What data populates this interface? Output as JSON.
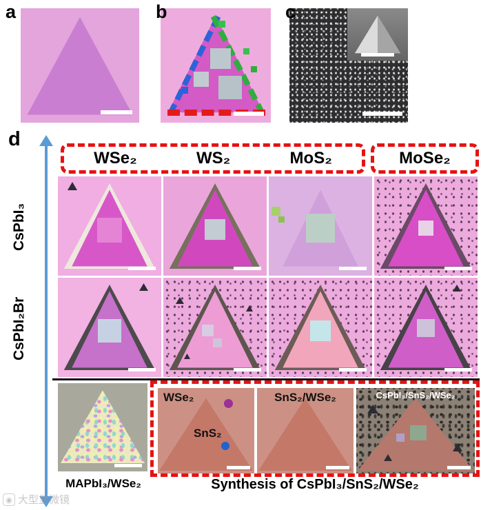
{
  "figure": {
    "panel_labels": {
      "a": "a",
      "b": "b",
      "c": "c",
      "d": "d"
    }
  },
  "grid": {
    "column_headers": [
      "WSe₂",
      "WS₂",
      "MoS₂",
      "MoSe₂"
    ],
    "row_headers": [
      "CsPbI₃",
      "CsPbI₂Br"
    ]
  },
  "bottom_row": {
    "left_caption": "MAPbI₃/WSe₂",
    "synthesis_caption": "Synthesis of CsPbI₃/SnS₂/WSe₂",
    "tile_wse2_sns2": {
      "label_top": "WSe₂",
      "label_mid": "SnS₂"
    },
    "tile_sns2_wse2": {
      "label": "SnS₂/WSe₂"
    },
    "tile_cspbi3_sns2_wse2": {
      "label": "CsPbI₃/SnS₂/WSe₂"
    }
  },
  "watermark": {
    "icon": "instrument-logo",
    "text": "大型显微镜"
  },
  "colors": {
    "dashed_red": "#e61212",
    "arrow_blue": "#5b9bd5",
    "perovskite_magenta": "#d45cc6",
    "substrate_pink": "#ecaade"
  }
}
